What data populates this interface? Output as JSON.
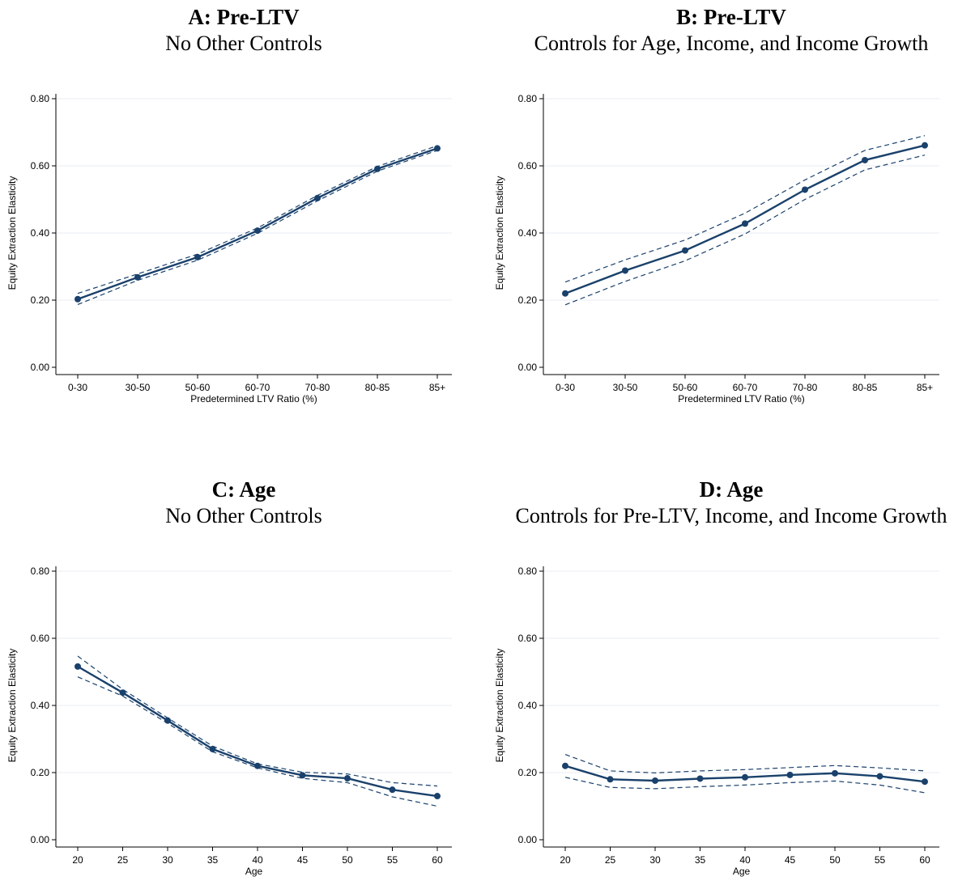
{
  "panels": [
    {
      "title": "A: Pre-LTV",
      "subtitle": "No Other Controls",
      "chart_data": {
        "type": "line",
        "xlabel": "Predetermined LTV Ratio (%)",
        "ylabel": "Equity Extraction Elasticity",
        "categories": [
          "0-30",
          "30-50",
          "50-60",
          "60-70",
          "70-80",
          "80-85",
          "85+"
        ],
        "yticks": [
          "0.00",
          "0.20",
          "0.40",
          "0.60",
          "0.80"
        ],
        "ylim": [
          0,
          0.8
        ],
        "series": [
          {
            "values": [
              0.203,
              0.268,
              0.328,
              0.407,
              0.504,
              0.591,
              0.652
            ]
          },
          {
            "values": [
              0.22,
              0.278,
              0.337,
              0.415,
              0.512,
              0.598,
              0.66
            ]
          },
          {
            "values": [
              0.187,
              0.259,
              0.319,
              0.399,
              0.496,
              0.584,
              0.646
            ]
          }
        ],
        "grid": true
      }
    },
    {
      "title": "B: Pre-LTV",
      "subtitle": "Controls for Age, Income, and Income Growth",
      "chart_data": {
        "type": "line",
        "xlabel": "Predetermined LTV Ratio (%)",
        "ylabel": "Equity Extraction Elasticity",
        "categories": [
          "0-30",
          "30-50",
          "50-60",
          "60-70",
          "70-80",
          "80-85",
          "85+"
        ],
        "yticks": [
          "0.00",
          "0.20",
          "0.40",
          "0.60",
          "0.80"
        ],
        "ylim": [
          0,
          0.8
        ],
        "series": [
          {
            "values": [
              0.22,
              0.288,
              0.348,
              0.428,
              0.529,
              0.617,
              0.661
            ]
          },
          {
            "values": [
              0.254,
              0.32,
              0.379,
              0.459,
              0.558,
              0.646,
              0.69
            ]
          },
          {
            "values": [
              0.186,
              0.256,
              0.317,
              0.397,
              0.5,
              0.588,
              0.632
            ]
          }
        ],
        "grid": true
      }
    },
    {
      "title": "C: Age",
      "subtitle": "No Other Controls",
      "chart_data": {
        "type": "line",
        "xlabel": "Age",
        "ylabel": "Equity Extraction Elasticity",
        "categories": [
          "20",
          "25",
          "30",
          "35",
          "40",
          "45",
          "50",
          "55",
          "60"
        ],
        "yticks": [
          "0.00",
          "0.20",
          "0.40",
          "0.60",
          "0.80"
        ],
        "ylim": [
          0,
          0.8
        ],
        "series": [
          {
            "values": [
              0.516,
              0.438,
              0.355,
              0.27,
              0.22,
              0.192,
              0.183,
              0.149,
              0.13
            ]
          },
          {
            "values": [
              0.547,
              0.448,
              0.363,
              0.279,
              0.226,
              0.201,
              0.196,
              0.17,
              0.16
            ]
          },
          {
            "values": [
              0.485,
              0.428,
              0.347,
              0.262,
              0.214,
              0.183,
              0.17,
              0.128,
              0.1
            ]
          }
        ],
        "grid": true
      }
    },
    {
      "title": "D: Age",
      "subtitle": "Controls for Pre-LTV, Income, and Income Growth",
      "chart_data": {
        "type": "line",
        "xlabel": "Age",
        "ylabel": "Equity Extraction Elasticity",
        "categories": [
          "20",
          "25",
          "30",
          "35",
          "40",
          "45",
          "50",
          "55",
          "60"
        ],
        "yticks": [
          "0.00",
          "0.20",
          "0.40",
          "0.60",
          "0.80"
        ],
        "ylim": [
          0,
          0.8
        ],
        "series": [
          {
            "values": [
              0.22,
              0.18,
              0.176,
              0.182,
              0.186,
              0.193,
              0.198,
              0.189,
              0.173
            ]
          },
          {
            "values": [
              0.254,
              0.205,
              0.199,
              0.205,
              0.209,
              0.215,
              0.221,
              0.214,
              0.205
            ]
          },
          {
            "values": [
              0.186,
              0.156,
              0.152,
              0.158,
              0.163,
              0.17,
              0.175,
              0.163,
              0.14
            ]
          }
        ],
        "grid": true
      }
    }
  ],
  "colors": {
    "line": "#1a416b",
    "grid": "#eaeef3",
    "axis": "#000000"
  }
}
